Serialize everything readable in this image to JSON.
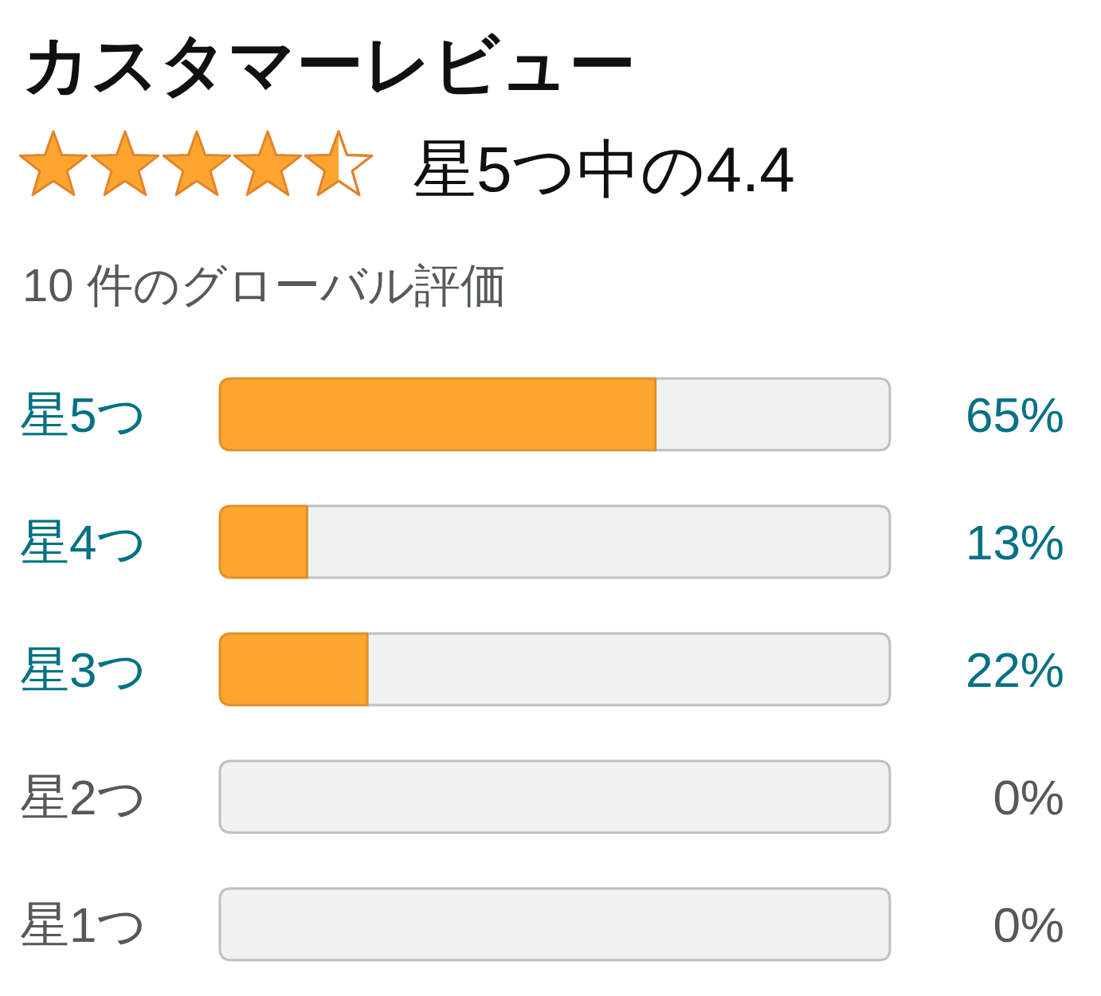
{
  "chart_data": {
    "type": "bar",
    "orientation": "horizontal",
    "stacked": true,
    "title": "カスタマーレビュー",
    "subtitle": "星5つ中の4.4",
    "annotations": [
      "10 件のグローバル評価"
    ],
    "categories": [
      "星5つ",
      "星4つ",
      "星3つ",
      "星2つ",
      "星1つ"
    ],
    "series": [
      {
        "color": "#fea52f",
        "values": [
          65,
          13,
          22,
          0,
          0
        ],
        "value_labels": [
          "65%",
          "13%",
          "22%",
          "0%",
          "0%"
        ]
      },
      {
        "color": "#f0f2f2",
        "values": [
          35,
          87,
          78,
          100,
          100
        ]
      }
    ],
    "xlim": [
      0,
      100
    ],
    "tick_labels": "y"
  }
}
